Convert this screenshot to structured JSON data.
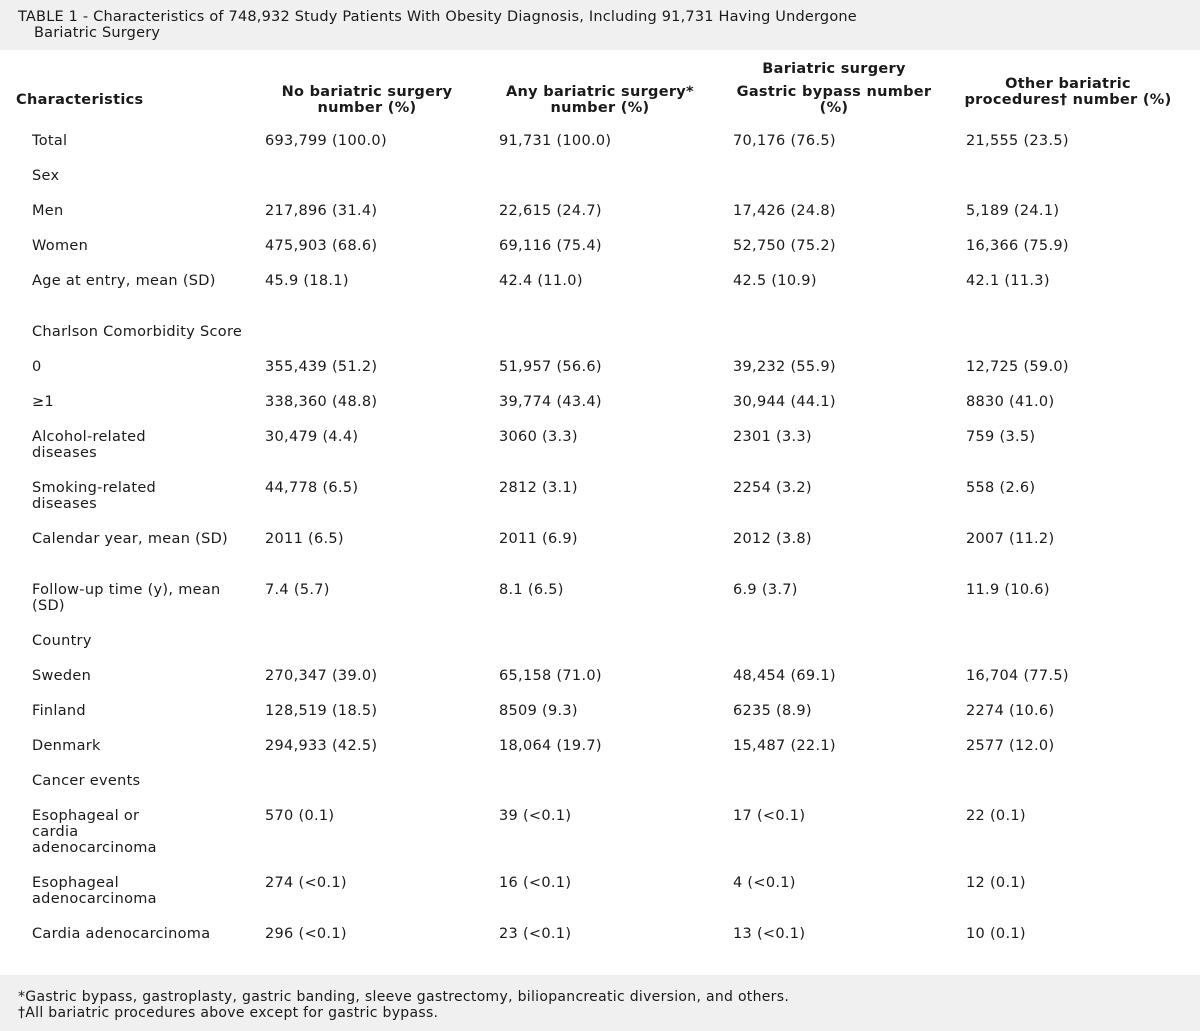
{
  "title": {
    "line1": "TABLE 1 - Characteristics of 748,932 Study Patients With Obesity Diagnosis, Including 91,731 Having Undergone",
    "line2": "Bariatric Surgery"
  },
  "headers": {
    "characteristics": "Characteristics",
    "no_surgery": "No bariatric surgery number (%)",
    "any_surgery": "Any bariatric surgery* number (%)",
    "span": "Bariatric surgery",
    "gastric_bypass": "Gastric bypass number (%)",
    "other": "Other bariatric procedures† number (%)"
  },
  "rows": [
    {
      "label": "Total",
      "c1": "693,799 (100.0)",
      "c2": "91,731 (100.0)",
      "c3": "70,176 (76.5)",
      "c4": "21,555 (23.5)"
    },
    {
      "label": "Sex",
      "c1": "",
      "c2": "",
      "c3": "",
      "c4": ""
    },
    {
      "label": "Men",
      "c1": "217,896 (31.4)",
      "c2": "22,615 (24.7)",
      "c3": "17,426 (24.8)",
      "c4": "5,189 (24.1)"
    },
    {
      "label": "Women",
      "c1": "475,903 (68.6)",
      "c2": "69,116 (75.4)",
      "c3": "52,750 (75.2)",
      "c4": "16,366 (75.9)"
    },
    {
      "label": "Age at entry, mean (SD)",
      "c1": "45.9 (18.1)",
      "c2": "42.4 (11.0)",
      "c3": "42.5 (10.9)",
      "c4": "42.1 (11.3)"
    },
    {
      "label": "Charlson Comorbidity Score",
      "c1": "",
      "c2": "",
      "c3": "",
      "c4": ""
    },
    {
      "label": "0",
      "c1": "355,439 (51.2)",
      "c2": "51,957 (56.6)",
      "c3": "39,232 (55.9)",
      "c4": "12,725 (59.0)"
    },
    {
      "label": "≥1",
      "c1": "338,360 (48.8)",
      "c2": "39,774 (43.4)",
      "c3": "30,944 (44.1)",
      "c4": "8830 (41.0)"
    },
    {
      "label": "Alcohol-related diseases",
      "c1": "30,479 (4.4)",
      "c2": "3060 (3.3)",
      "c3": "2301 (3.3)",
      "c4": "759 (3.5)"
    },
    {
      "label": "Smoking-related diseases",
      "c1": "44,778 (6.5)",
      "c2": "2812 (3.1)",
      "c3": "2254 (3.2)",
      "c4": "558 (2.6)"
    },
    {
      "label": "Calendar year, mean (SD)",
      "c1": "2011 (6.5)",
      "c2": "2011 (6.9)",
      "c3": "2012 (3.8)",
      "c4": "2007 (11.2)"
    },
    {
      "label": "Follow-up time (y), mean (SD)",
      "c1": "7.4 (5.7)",
      "c2": "8.1 (6.5)",
      "c3": "6.9 (3.7)",
      "c4": "11.9 (10.6)"
    },
    {
      "label": "Country",
      "c1": "",
      "c2": "",
      "c3": "",
      "c4": ""
    },
    {
      "label": "Sweden",
      "c1": "270,347 (39.0)",
      "c2": "65,158 (71.0)",
      "c3": "48,454 (69.1)",
      "c4": "16,704 (77.5)"
    },
    {
      "label": "Finland",
      "c1": "128,519 (18.5)",
      "c2": "8509 (9.3)",
      "c3": "6235 (8.9)",
      "c4": "2274 (10.6)"
    },
    {
      "label": "Denmark",
      "c1": "294,933 (42.5)",
      "c2": "18,064 (19.7)",
      "c3": "15,487 (22.1)",
      "c4": "2577 (12.0)"
    },
    {
      "label": "Cancer events",
      "c1": "",
      "c2": "",
      "c3": "",
      "c4": ""
    },
    {
      "label": "Esophageal or cardia adenocarcinoma",
      "c1": "570 (0.1)",
      "c2": "39 (<0.1)",
      "c3": "17 (<0.1)",
      "c4": "22 (0.1)"
    },
    {
      "label": "Esophageal adenocarcinoma",
      "c1": "274 (<0.1)",
      "c2": "16 (<0.1)",
      "c3": "4 (<0.1)",
      "c4": "12 (0.1)"
    },
    {
      "label": "Cardia adenocarcinoma",
      "c1": "296 (<0.1)",
      "c2": "23 (<0.1)",
      "c3": "13 (<0.1)",
      "c4": "10 (0.1)"
    }
  ],
  "footnotes": {
    "f1": "*Gastric bypass, gastroplasty, gastric banding, sleeve gastrectomy, biliopancreatic diversion, and others.",
    "f2": "†All bariatric procedures above except for gastric bypass."
  }
}
